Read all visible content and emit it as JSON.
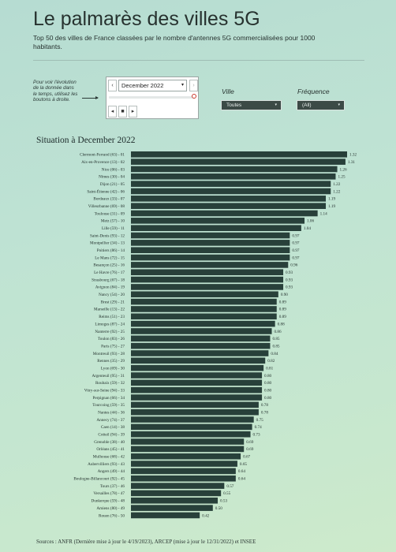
{
  "header": {
    "title": "Le palmarès des villes 5G",
    "subtitle": "Top 50 des villes de France classées par le nombre d'antennes 5G commercialisées pour 1000 habitants."
  },
  "controls": {
    "hint": "Pour voir l'évolution de la donnée dans le temps, utilisez les boutons à droite.",
    "date_selected": "December 2022",
    "prev_label": "‹",
    "next_label": "›",
    "back_label": "◂",
    "stop_label": "■",
    "play_label": "▸",
    "ville_label": "Ville",
    "ville_value": "Toutes",
    "frequence_label": "Fréquence",
    "frequence_value": "(All)",
    "chevron": "▾"
  },
  "chart_title": "Situation à December 2022",
  "sources": "Sources : ANFR (Dernière mise à jour le 4/19/2023), ARCEP (mise à jour le 12/31/2022) et INSEE",
  "colors": {
    "bar": "#28403a",
    "accent_knob": "#cc3a2e"
  },
  "chart_data": {
    "type": "bar",
    "orientation": "horizontal",
    "categories": [
      "Clermont-Ferrand (63) - 01",
      "Aix-en-Provence (13) - 02",
      "Nice (06) - 03",
      "Nîmes (30) - 04",
      "Dijon (21) - 05",
      "Saint-Étienne (42) - 06",
      "Bordeaux (33) - 07",
      "Villeurbanne (69) - 08",
      "Toulouse (31) - 09",
      "Metz (57) - 10",
      "Lille (59) - 11",
      "Saint-Denis (93) - 12",
      "Montpellier (34) - 13",
      "Poitiers (86) - 14",
      "Le Mans (72) - 15",
      "Besançon (25) - 16",
      "Le Havre (76) - 17",
      "Strasbourg (67) - 18",
      "Avignon (84) - 19",
      "Nancy (54) - 20",
      "Brest (29) - 21",
      "Marseille (13) - 22",
      "Reims (51) - 23",
      "Limoges (87) - 24",
      "Nanterre (92) - 25",
      "Toulon (83) - 26",
      "Paris (75) - 27",
      "Montreuil (93) - 28",
      "Rennes (35) - 29",
      "Lyon (69) - 30",
      "Argenteuil (95) - 31",
      "Roubaix (59) - 32",
      "Vitry-sur-Seine (94) - 33",
      "Perpignan (66) - 34",
      "Tourcoing (59) - 35",
      "Nantes (44) - 36",
      "Annecy (74) - 37",
      "Caen (14) - 38",
      "Créteil (94) - 39",
      "Grenoble (38) - 40",
      "Orléans (45) - 41",
      "Mulhouse (68) - 42",
      "Aubervilliers (93) - 43",
      "Angers (49) - 44",
      "Boulogne-Billancourt (92) - 45",
      "Tours (37) - 46",
      "Versailles (78) - 47",
      "Dunkerque (59) - 48",
      "Amiens (80) - 49",
      "Rouen (76) - 50"
    ],
    "values": [
      1.32,
      1.31,
      1.26,
      1.25,
      1.22,
      1.22,
      1.19,
      1.19,
      1.14,
      1.06,
      1.04,
      0.97,
      0.97,
      0.97,
      0.97,
      0.96,
      0.93,
      0.93,
      0.93,
      0.9,
      0.89,
      0.89,
      0.89,
      0.88,
      0.86,
      0.85,
      0.85,
      0.84,
      0.82,
      0.81,
      0.8,
      0.8,
      0.8,
      0.8,
      0.78,
      0.78,
      0.75,
      0.74,
      0.73,
      0.69,
      0.69,
      0.67,
      0.65,
      0.64,
      0.64,
      0.57,
      0.55,
      0.53,
      0.5,
      0.42
    ],
    "value_labels": [
      "1.32",
      "1.31",
      "1.26",
      "1.25",
      "1.22",
      "1.22",
      "1.19",
      "1.19",
      "1.14",
      "1.06",
      "1.04",
      "0.97",
      "0.97",
      "0.97",
      "0.97",
      "0.96",
      "0.93",
      "0.93",
      "0.93",
      "0.90",
      "0.89",
      "0.89",
      "0.89",
      "0.88",
      "0.86",
      "0.85",
      "0.85",
      "0.84",
      "0.82",
      "0.81",
      "0.80",
      "0.80",
      "0.80",
      "0.80",
      "0.78",
      "0.78",
      "0.75",
      "0.74",
      "0.73",
      "0.69",
      "0.69",
      "0.67",
      "0.65",
      "0.64",
      "0.64",
      "0.57",
      "0.55",
      "0.53",
      "0.50",
      "0.42"
    ],
    "xlim": [
      0,
      1.32
    ],
    "grid": false,
    "title": "Situation à December 2022"
  }
}
